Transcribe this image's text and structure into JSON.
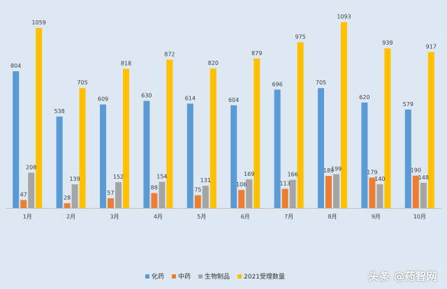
{
  "chart_data": {
    "type": "bar",
    "title": "",
    "xlabel": "",
    "ylabel": "",
    "ylim": [
      0,
      1100
    ],
    "grid": false,
    "legend_position": "bottom",
    "categories": [
      "1月",
      "2月",
      "3月",
      "4月",
      "5月",
      "6月",
      "7月",
      "8月",
      "9月",
      "10月"
    ],
    "series": [
      {
        "name": "化药",
        "color": "#5b9bd5",
        "values": [
          804,
          538,
          609,
          630,
          614,
          604,
          696,
          705,
          620,
          579
        ]
      },
      {
        "name": "中药",
        "color": "#ed7d31",
        "values": [
          47,
          28,
          57,
          88,
          75,
          106,
          113,
          189,
          179,
          190
        ]
      },
      {
        "name": "生物制品",
        "color": "#a5a5a5",
        "values": [
          208,
          139,
          152,
          154,
          131,
          169,
          166,
          199,
          140,
          148
        ]
      },
      {
        "name": "2021受理数量",
        "color": "#ffc000",
        "values": [
          1059,
          705,
          818,
          872,
          820,
          879,
          975,
          1093,
          939,
          917
        ]
      }
    ]
  },
  "watermark": "头条 @药智网"
}
